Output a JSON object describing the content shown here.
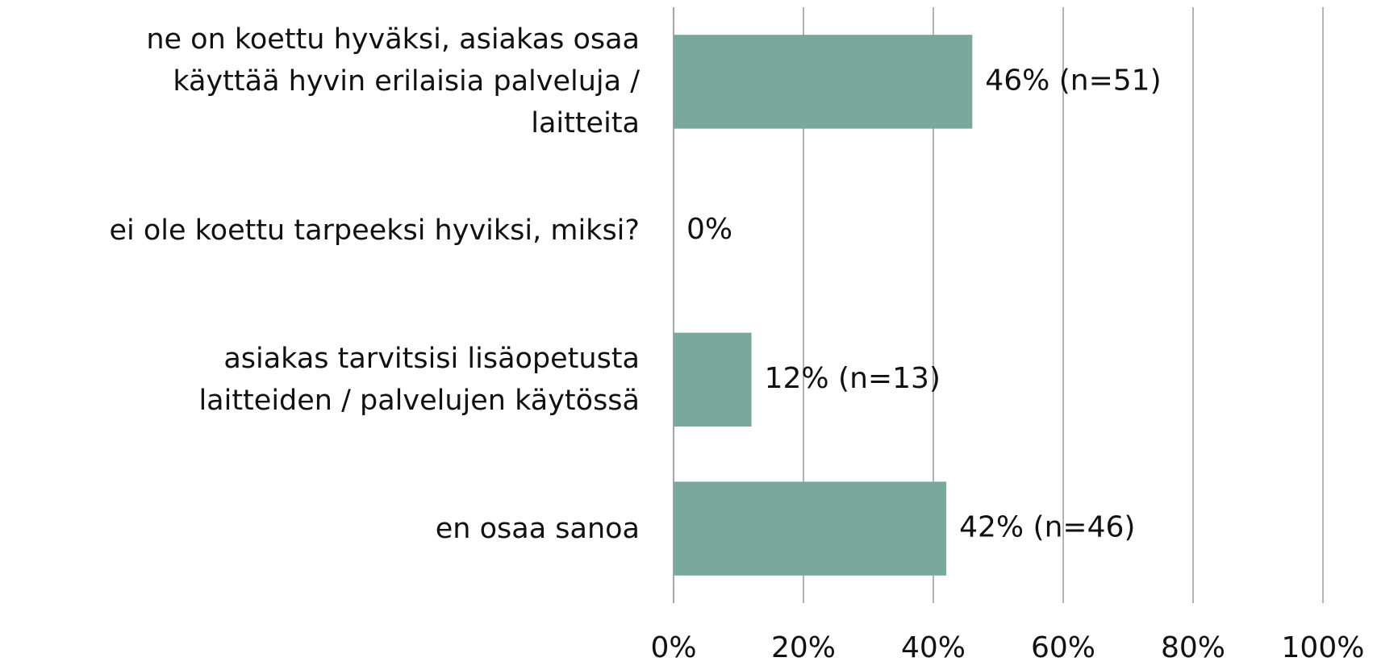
{
  "chart_data": {
    "type": "bar",
    "orientation": "horizontal",
    "categories": [
      "ne on koettu hyväksi, asiakas osaa käyttää hyvin erilaisia palveluja / laitteita",
      "ei ole koettu tarpeeksi hyviksi, miksi?",
      "asiakas tarvitsisi lisäopetusta laitteiden / palvelujen käytössä",
      "en osaa sanoa"
    ],
    "values": [
      46,
      0,
      12,
      42
    ],
    "value_labels": [
      "46% (n=51)",
      "0%",
      "12% (n=13)",
      "42% (n=46)"
    ],
    "color": "#7ba89d",
    "xlim": [
      0,
      100
    ],
    "xticks": [
      {
        "value": 0,
        "label": "0%"
      },
      {
        "value": 20,
        "label": "20%"
      },
      {
        "value": 40,
        "label": "40%"
      },
      {
        "value": 60,
        "label": "60%"
      },
      {
        "value": 80,
        "label": "80%"
      },
      {
        "value": 100,
        "label": "100%"
      }
    ],
    "grid": true
  }
}
